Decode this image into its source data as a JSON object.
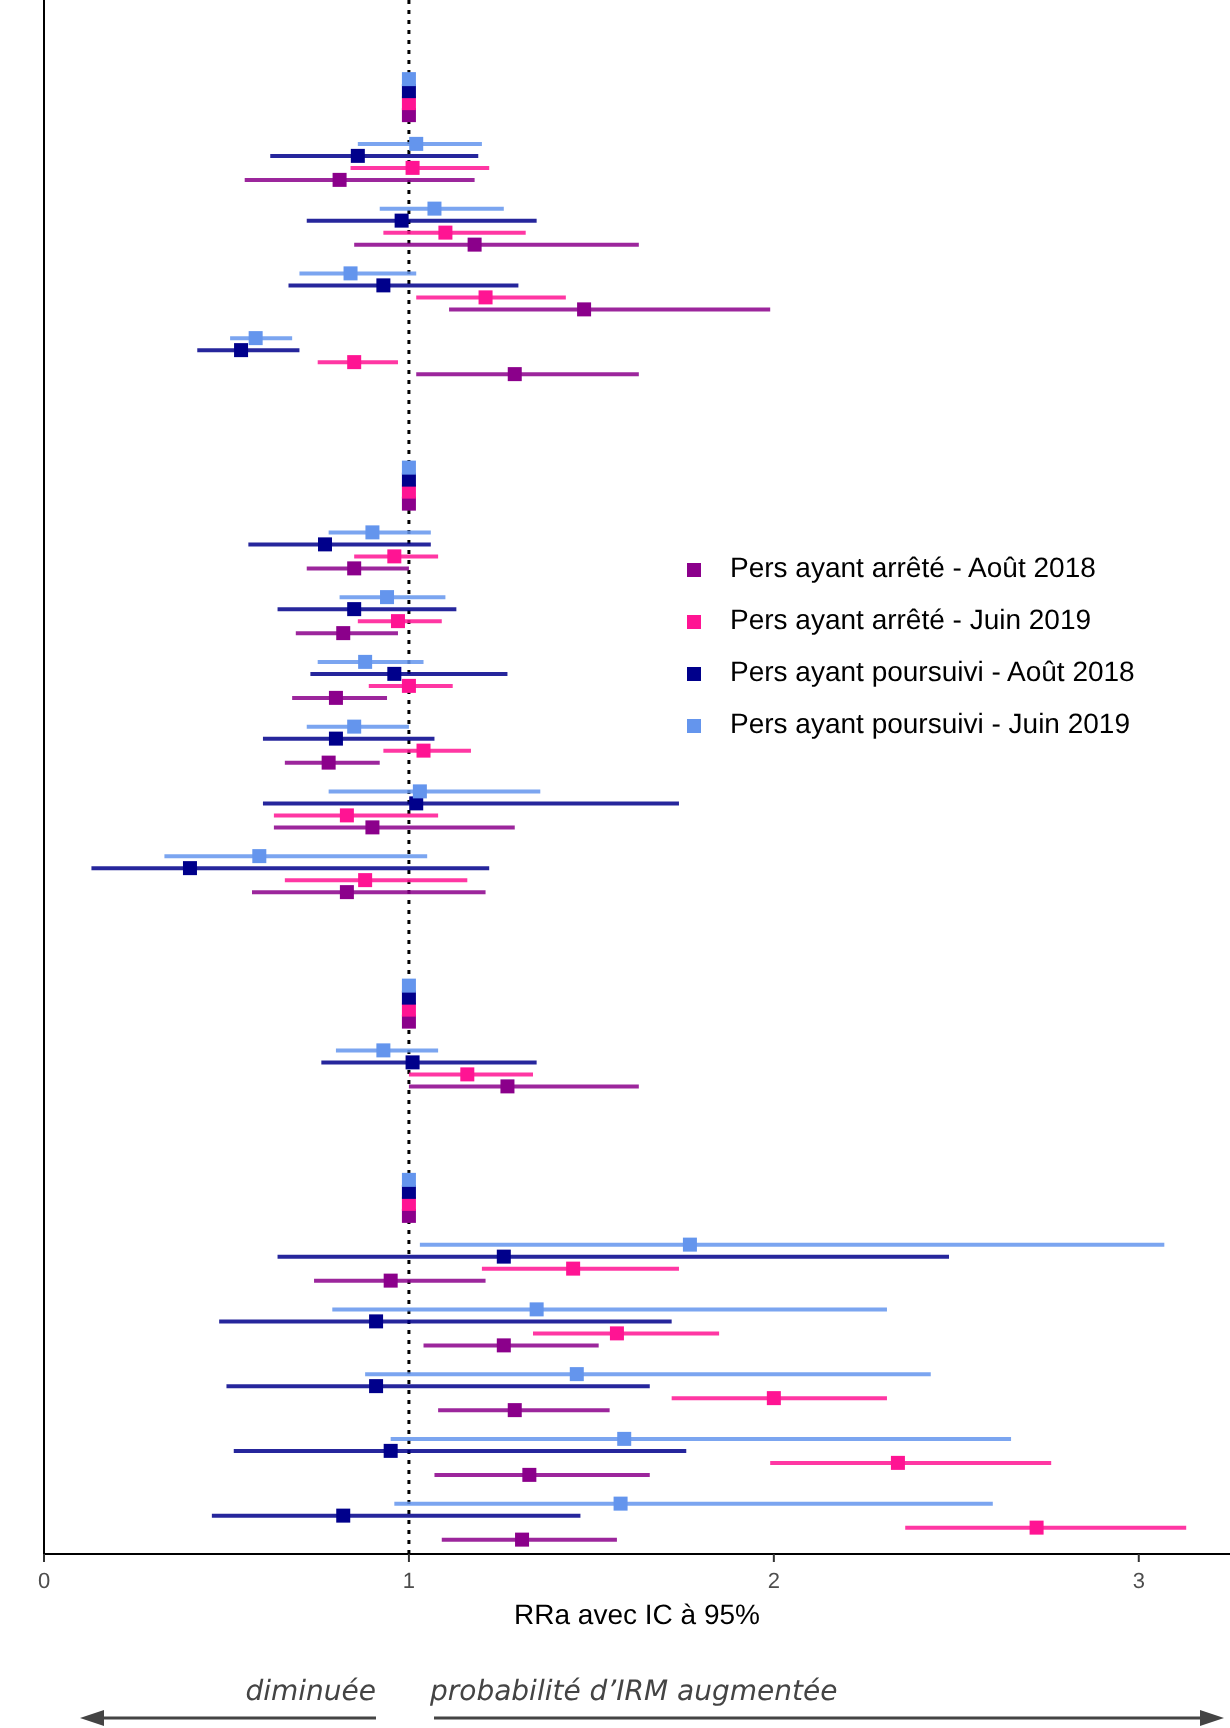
{
  "chart_data": {
    "type": "scatter",
    "orientation": "horizontal",
    "marker": "square",
    "legend": "right",
    "tick_labels": "x",
    "xlabel": "RRa avec IC à 95%",
    "xlim": [
      0,
      3.25
    ],
    "xticks": [
      0,
      1,
      2,
      3
    ],
    "categories": [
      null,
      null,
      null,
      null,
      null,
      null,
      null,
      null,
      null,
      null,
      null,
      null,
      null,
      null,
      null,
      null,
      null,
      null,
      null,
      null,
      null,
      null,
      null,
      null
    ],
    "ref_lines": [
      {
        "axis": "x",
        "value": 1,
        "line_style": "dotted"
      }
    ],
    "annotations": [
      "diminuée",
      "probabilité d’IRM augmentée"
    ],
    "series": [
      {
        "name": "Pers ayant arrêté - Août 2018",
        "color": "#8b008b",
        "values": [
          null,
          1,
          0.81,
          1.18,
          1.48,
          1.29,
          null,
          1,
          0.85,
          0.82,
          0.8,
          0.78,
          0.9,
          0.83,
          null,
          1,
          1.27,
          null,
          1,
          0.95,
          1.26,
          1.29,
          1.33,
          1.31
        ],
        "errors": [
          null,
          null,
          [
            0.55,
            1.18
          ],
          [
            0.85,
            1.63
          ],
          [
            1.11,
            1.99
          ],
          [
            1.02,
            1.63
          ],
          null,
          null,
          [
            0.72,
            1.0
          ],
          [
            0.69,
            0.97
          ],
          [
            0.68,
            0.94
          ],
          [
            0.66,
            0.92
          ],
          [
            0.63,
            1.29
          ],
          [
            0.57,
            1.21
          ],
          null,
          null,
          [
            1.0,
            1.63
          ],
          null,
          null,
          [
            0.74,
            1.21
          ],
          [
            1.04,
            1.52
          ],
          [
            1.08,
            1.55
          ],
          [
            1.07,
            1.66
          ],
          [
            1.09,
            1.57
          ]
        ]
      },
      {
        "name": "Pers ayant arrêté - Juin 2019",
        "color": "#ff1493",
        "values": [
          null,
          1,
          1.01,
          1.1,
          1.21,
          0.85,
          null,
          1,
          0.96,
          0.97,
          1.0,
          1.04,
          0.83,
          0.88,
          null,
          1,
          1.16,
          null,
          1,
          1.45,
          1.57,
          2.0,
          2.34,
          2.72
        ],
        "errors": [
          null,
          null,
          [
            0.84,
            1.22
          ],
          [
            0.93,
            1.32
          ],
          [
            1.02,
            1.43
          ],
          [
            0.75,
            0.97
          ],
          null,
          null,
          [
            0.85,
            1.08
          ],
          [
            0.86,
            1.09
          ],
          [
            0.89,
            1.12
          ],
          [
            0.93,
            1.17
          ],
          [
            0.63,
            1.08
          ],
          [
            0.66,
            1.16
          ],
          null,
          null,
          [
            1.0,
            1.34
          ],
          null,
          null,
          [
            1.2,
            1.74
          ],
          [
            1.34,
            1.85
          ],
          [
            1.72,
            2.31
          ],
          [
            1.99,
            2.76
          ],
          [
            2.36,
            3.13
          ]
        ]
      },
      {
        "name": "Pers ayant poursuivi - Août 2018",
        "color": "#00008b",
        "values": [
          null,
          1,
          0.86,
          0.98,
          0.93,
          0.54,
          null,
          1,
          0.77,
          0.85,
          0.96,
          0.8,
          1.02,
          0.4,
          null,
          1,
          1.01,
          null,
          1,
          1.26,
          0.91,
          0.91,
          0.95,
          0.82
        ],
        "errors": [
          null,
          null,
          [
            0.62,
            1.19
          ],
          [
            0.72,
            1.35
          ],
          [
            0.67,
            1.3
          ],
          [
            0.42,
            0.7
          ],
          null,
          null,
          [
            0.56,
            1.06
          ],
          [
            0.64,
            1.13
          ],
          [
            0.73,
            1.27
          ],
          [
            0.6,
            1.07
          ],
          [
            0.6,
            1.74
          ],
          [
            0.13,
            1.22
          ],
          null,
          null,
          [
            0.76,
            1.35
          ],
          null,
          null,
          [
            0.64,
            2.48
          ],
          [
            0.48,
            1.72
          ],
          [
            0.5,
            1.66
          ],
          [
            0.52,
            1.76
          ],
          [
            0.46,
            1.47
          ]
        ]
      },
      {
        "name": "Pers ayant poursuivi - Juin 2019",
        "color": "#6495ed",
        "values": [
          null,
          1,
          1.02,
          1.07,
          0.84,
          0.58,
          null,
          1,
          0.9,
          0.94,
          0.88,
          0.85,
          1.03,
          0.59,
          null,
          1,
          0.93,
          null,
          1,
          1.77,
          1.35,
          1.46,
          1.59,
          1.58
        ],
        "errors": [
          null,
          null,
          [
            0.86,
            1.2
          ],
          [
            0.92,
            1.26
          ],
          [
            0.7,
            1.02
          ],
          [
            0.51,
            0.68
          ],
          null,
          null,
          [
            0.78,
            1.06
          ],
          [
            0.81,
            1.1
          ],
          [
            0.75,
            1.04
          ],
          [
            0.72,
            1.0
          ],
          [
            0.78,
            1.36
          ],
          [
            0.33,
            1.05
          ],
          null,
          null,
          [
            0.8,
            1.08
          ],
          null,
          null,
          [
            1.03,
            3.07
          ],
          [
            0.79,
            2.31
          ],
          [
            0.88,
            2.43
          ],
          [
            0.95,
            2.65
          ],
          [
            0.96,
            2.6
          ]
        ]
      }
    ]
  }
}
